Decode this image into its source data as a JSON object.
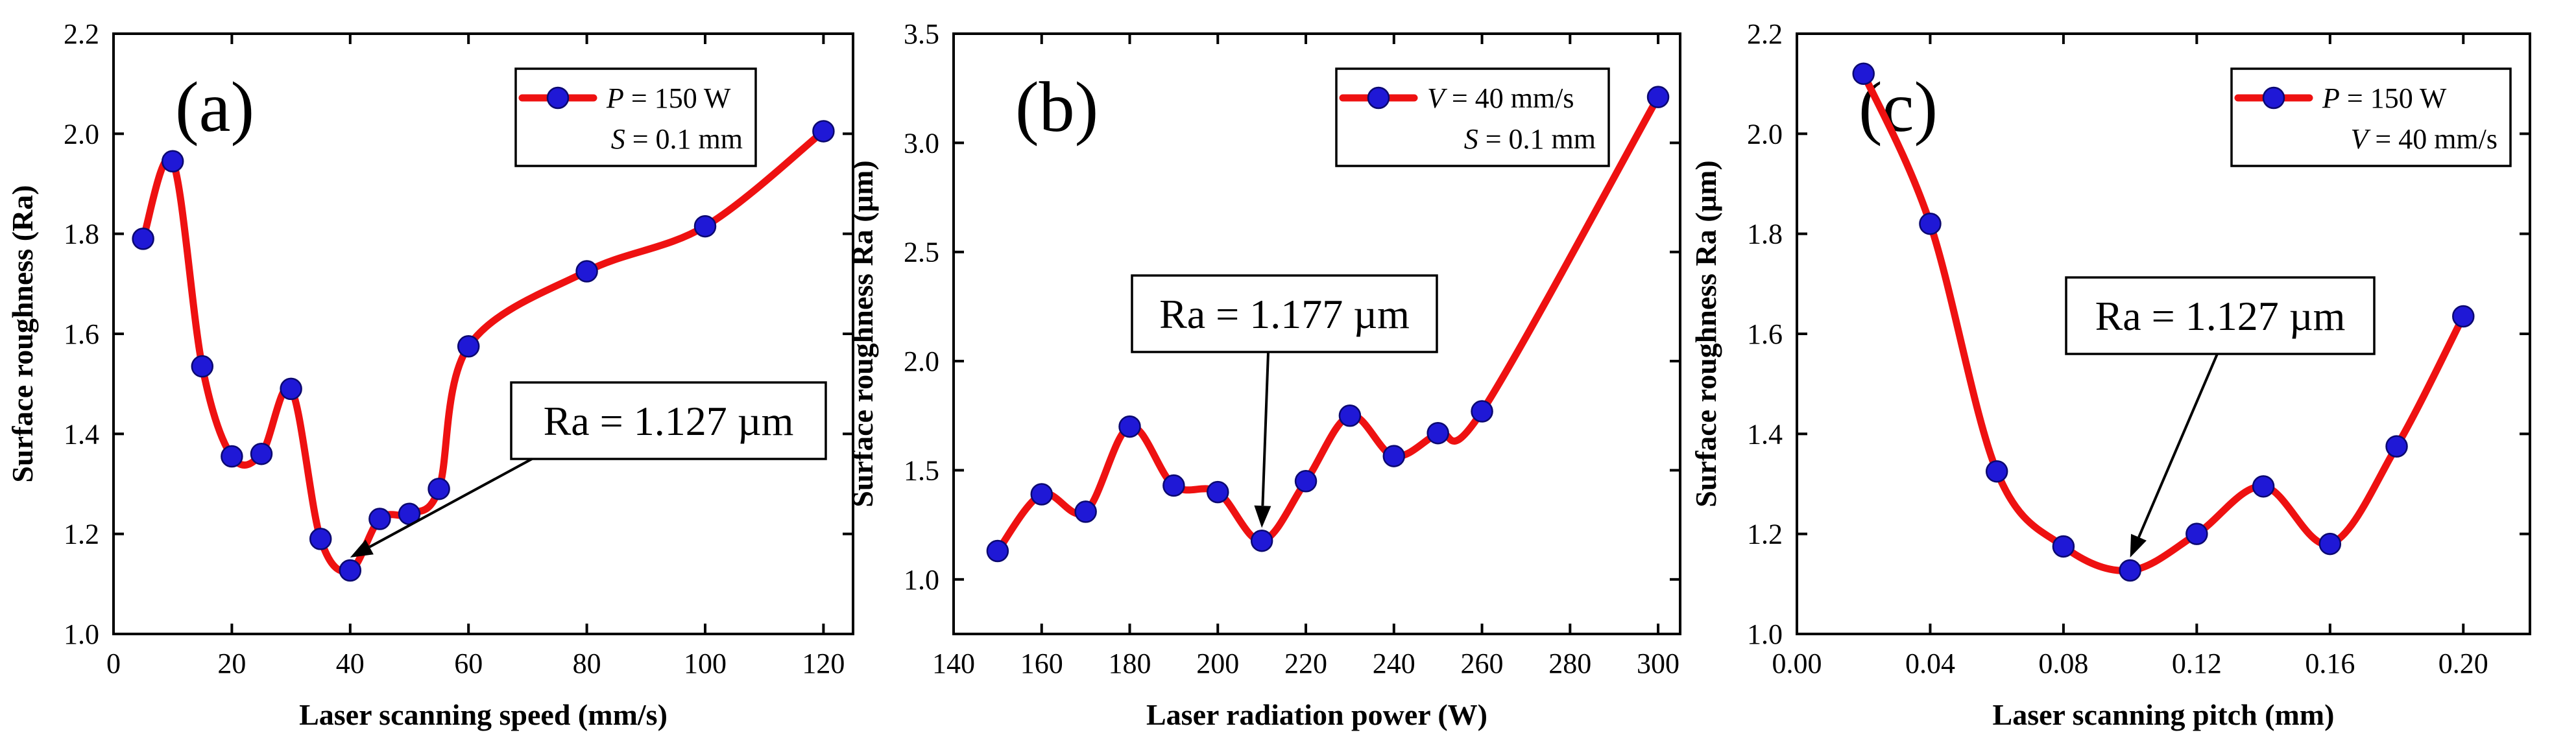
{
  "chart_data": [
    {
      "type": "line",
      "panel_label": "(a)",
      "xlabel": "Laser scanning speed (mm/s)",
      "ylabel": "Surface roughness (Ra)",
      "xlim": [
        0,
        125
      ],
      "ylim": [
        1.0,
        2.2
      ],
      "xticks": [
        0,
        20,
        40,
        60,
        80,
        100,
        120
      ],
      "xtick_labels": [
        "0",
        "20",
        "40",
        "60",
        "80",
        "100",
        "120"
      ],
      "yticks": [
        1.0,
        1.2,
        1.4,
        1.6,
        1.8,
        2.0,
        2.2
      ],
      "ytick_labels": [
        "1.0",
        "1.2",
        "1.4",
        "1.6",
        "1.8",
        "2.0",
        "2.2"
      ],
      "legend": {
        "line1_sym": "P",
        "line1_rest": " = 150 W",
        "line2_sym": "S",
        "line2_rest": " = 0.1 mm",
        "position": "top-right"
      },
      "annotation": {
        "text": "Ra = 1.127 µm",
        "x": 40,
        "y": 1.127
      },
      "series": [
        {
          "color": "#ee1111",
          "marker_color": "#1f18d6",
          "x": [
            5,
            10,
            15,
            20,
            25,
            30,
            35,
            40,
            45,
            50,
            55,
            60,
            80,
            100,
            120
          ],
          "y": [
            1.79,
            1.945,
            1.535,
            1.355,
            1.36,
            1.49,
            1.19,
            1.127,
            1.23,
            1.24,
            1.29,
            1.575,
            1.725,
            1.815,
            2.005
          ]
        }
      ]
    },
    {
      "type": "line",
      "panel_label": "(b)",
      "xlabel": "Laser radiation power (W)",
      "ylabel": "Surface roughness Ra  (µm)",
      "xlim": [
        140,
        305
      ],
      "ylim": [
        0.75,
        3.5
      ],
      "xticks": [
        140,
        160,
        180,
        200,
        220,
        240,
        260,
        280,
        300
      ],
      "xtick_labels": [
        "140",
        "160",
        "180",
        "200",
        "220",
        "240",
        "260",
        "280",
        "300"
      ],
      "yticks": [
        1.0,
        1.5,
        2.0,
        2.5,
        3.0,
        3.5
      ],
      "ytick_labels": [
        "1.0",
        "1.5",
        "2.0",
        "2.5",
        "3.0",
        "3.5"
      ],
      "legend": {
        "line1_sym": "V",
        "line1_rest": " = 40 mm/s",
        "line2_sym": "S",
        "line2_rest": " = 0.1 mm",
        "position": "top-right"
      },
      "annotation": {
        "text": "Ra = 1.177 µm",
        "x": 210,
        "y": 1.177
      },
      "series": [
        {
          "color": "#ee1111",
          "marker_color": "#1f18d6",
          "x": [
            150,
            160,
            170,
            180,
            190,
            200,
            210,
            220,
            230,
            240,
            250,
            260,
            300
          ],
          "y": [
            1.13,
            1.39,
            1.31,
            1.7,
            1.43,
            1.4,
            1.177,
            1.45,
            1.75,
            1.565,
            1.67,
            1.77,
            3.21
          ]
        }
      ]
    },
    {
      "type": "line",
      "panel_label": "(c)",
      "xlabel": "Laser scanning pitch (mm)",
      "ylabel": "Surface roughness Ra  (µm)",
      "xlim": [
        0.0,
        0.22
      ],
      "ylim": [
        1.0,
        2.2
      ],
      "xticks": [
        0.0,
        0.04,
        0.08,
        0.12,
        0.16,
        0.2
      ],
      "xtick_labels": [
        "0.00",
        "0.04",
        "0.08",
        "0.12",
        "0.16",
        "0.20"
      ],
      "yticks": [
        1.0,
        1.2,
        1.4,
        1.6,
        1.8,
        2.0,
        2.2
      ],
      "ytick_labels": [
        "1.0",
        "1.2",
        "1.4",
        "1.6",
        "1.8",
        "2.0",
        "2.2"
      ],
      "legend": {
        "line1_sym": "P",
        "line1_rest": " = 150 W",
        "line2_sym": "V",
        "line2_rest": " = 40 mm/s",
        "position": "top-right"
      },
      "annotation": {
        "text": "Ra = 1.127 µm",
        "x": 0.1,
        "y": 1.127
      },
      "series": [
        {
          "color": "#ee1111",
          "marker_color": "#1f18d6",
          "x": [
            0.02,
            0.04,
            0.06,
            0.08,
            0.1,
            0.12,
            0.14,
            0.16,
            0.18,
            0.2
          ],
          "y": [
            2.12,
            1.82,
            1.325,
            1.175,
            1.127,
            1.2,
            1.295,
            1.18,
            1.375,
            1.635
          ]
        }
      ]
    }
  ]
}
